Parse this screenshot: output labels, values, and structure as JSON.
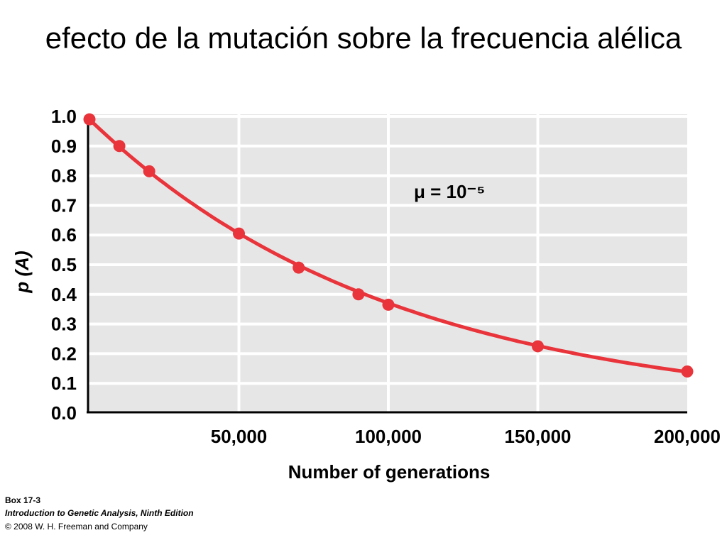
{
  "slide": {
    "title": "efecto de la mutación sobre la frecuencia alélica"
  },
  "credits": {
    "box": "Box 17-3",
    "book": "Introduction to Genetic Analysis, Ninth Edition",
    "copyright": "© 2008 W. H. Freeman and Company"
  },
  "chart_data": {
    "type": "line",
    "title": "",
    "xlabel": "Number of generations",
    "ylabel": "p (A)",
    "xlim": [
      0,
      200000
    ],
    "ylim": [
      0,
      1.0
    ],
    "xticks": [
      "50,000",
      "100,000",
      "150,000",
      "200,000"
    ],
    "xtick_values": [
      50000,
      100000,
      150000,
      200000
    ],
    "yticks": [
      "0.0",
      "0.1",
      "0.2",
      "0.3",
      "0.4",
      "0.5",
      "0.6",
      "0.7",
      "0.8",
      "0.9",
      "1.0"
    ],
    "ytick_values": [
      0,
      0.1,
      0.2,
      0.3,
      0.4,
      0.5,
      0.6,
      0.7,
      0.8,
      0.9,
      1.0
    ],
    "grid": true,
    "annotation": "μ = 10⁻⁵",
    "series": [
      {
        "color": "#e8343a",
        "curve": "exp(-1e-5 * x)",
        "points": [
          {
            "x": 0,
            "y": 0.99
          },
          {
            "x": 10000,
            "y": 0.9
          },
          {
            "x": 20000,
            "y": 0.815
          },
          {
            "x": 50000,
            "y": 0.605
          },
          {
            "x": 70000,
            "y": 0.49
          },
          {
            "x": 90000,
            "y": 0.4
          },
          {
            "x": 100000,
            "y": 0.365
          },
          {
            "x": 150000,
            "y": 0.225
          },
          {
            "x": 200000,
            "y": 0.14
          }
        ]
      }
    ]
  }
}
